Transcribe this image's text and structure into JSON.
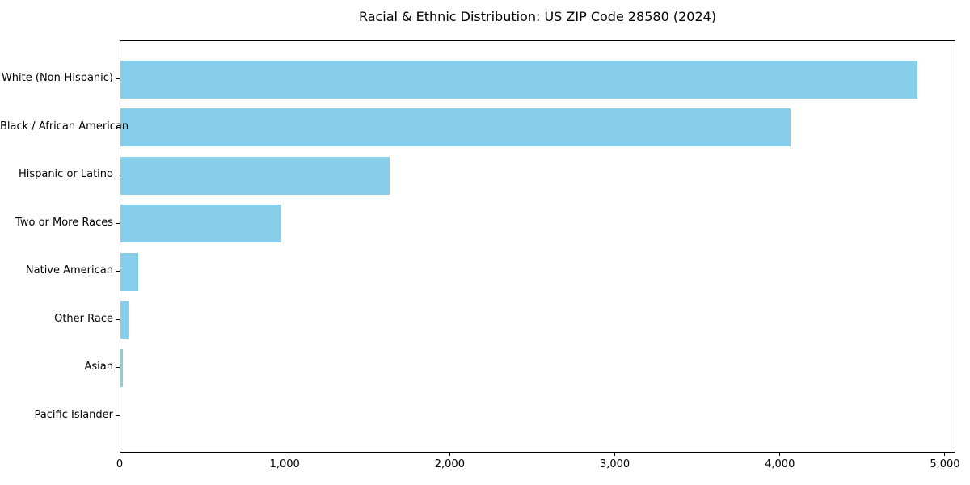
{
  "title": "Racial & Ethnic Distribution: US ZIP Code 28580 (2024)",
  "chart_data": {
    "type": "bar",
    "orientation": "horizontal",
    "title": "Racial & Ethnic Distribution: US ZIP Code 28580 (2024)",
    "xlabel": "",
    "ylabel": "",
    "categories": [
      "White (Non-Hispanic)",
      "Black / African American",
      "Hispanic or Latino",
      "Two or More Races",
      "Native American",
      "Other Race",
      "Asian",
      "Pacific Islander"
    ],
    "values": [
      4828,
      4060,
      1630,
      975,
      110,
      50,
      17,
      0
    ],
    "xlim": [
      0,
      5064
    ],
    "xticks": {
      "values": [
        0,
        1000,
        2000,
        3000,
        4000,
        5000
      ],
      "labels": [
        "0",
        "1,000",
        "2,000",
        "3,000",
        "4,000",
        "5,000"
      ]
    },
    "grid": false,
    "legend": null,
    "bar_color": "#87CEEB",
    "axis_color": "#000000",
    "background_color": "#ffffff",
    "text_color": "#000000"
  }
}
